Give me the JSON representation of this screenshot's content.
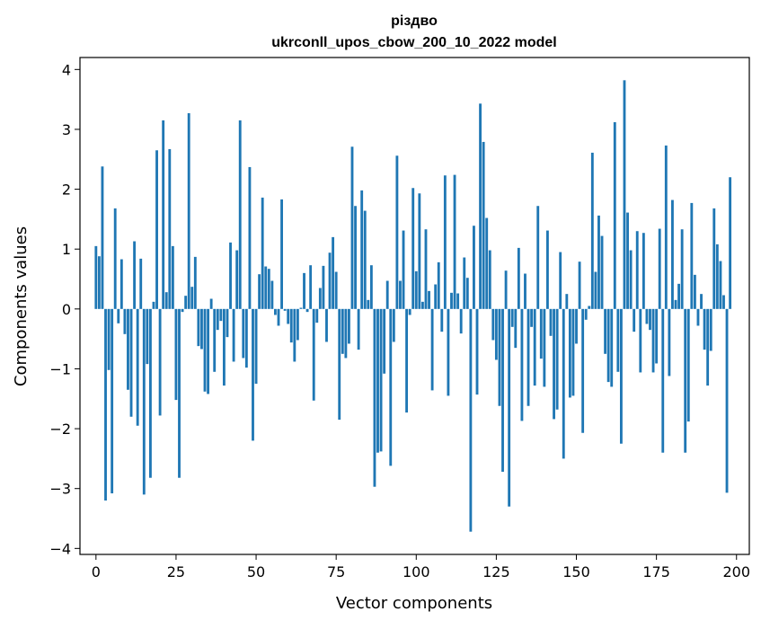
{
  "chart_data": {
    "type": "bar",
    "title": "різдво",
    "subtitle": "ukrconll_upos_cbow_200_10_2022 model",
    "xlabel": "Vector components",
    "ylabel": "Components values",
    "xlim": [
      -5,
      204
    ],
    "ylim": [
      -4.1,
      4.2
    ],
    "xticks": [
      0,
      25,
      50,
      75,
      100,
      125,
      150,
      175,
      200
    ],
    "yticks": [
      -4,
      -3,
      -2,
      -1,
      0,
      1,
      2,
      3,
      4
    ],
    "xtick_labels": [
      "0",
      "25",
      "50",
      "75",
      "100",
      "125",
      "150",
      "175",
      "200"
    ],
    "ytick_labels": [
      "−4",
      "−3",
      "−2",
      "−1",
      "0",
      "1",
      "2",
      "3",
      "4"
    ],
    "bar_color": "#1f77b4",
    "grid": false,
    "legend": "none",
    "values": [
      1.05,
      0.88,
      2.38,
      -3.2,
      -1.02,
      -3.08,
      1.68,
      -0.24,
      0.83,
      -0.42,
      -1.35,
      -1.8,
      1.13,
      -1.95,
      0.84,
      -3.1,
      -0.92,
      -2.82,
      0.12,
      2.65,
      -1.78,
      3.15,
      0.28,
      2.67,
      1.05,
      -1.52,
      -2.82,
      -0.05,
      0.22,
      3.27,
      0.37,
      0.87,
      -0.62,
      -0.67,
      -1.38,
      -1.42,
      0.17,
      -1.05,
      -0.35,
      -0.2,
      -1.28,
      -0.47,
      1.11,
      -0.88,
      0.98,
      3.15,
      -0.82,
      -0.98,
      2.37,
      -2.2,
      -1.25,
      0.58,
      1.86,
      0.71,
      0.67,
      0.47,
      -0.1,
      -0.28,
      1.83,
      -0.03,
      -0.25,
      -0.56,
      -0.88,
      -0.52,
      0.02,
      0.6,
      -0.05,
      0.73,
      -1.53,
      -0.23,
      0.35,
      0.72,
      -0.55,
      0.94,
      1.2,
      0.62,
      -1.85,
      -0.75,
      -0.82,
      -0.58,
      2.71,
      1.72,
      -0.68,
      1.98,
      1.64,
      0.15,
      0.73,
      -2.97,
      -2.4,
      -2.38,
      -1.08,
      0.47,
      -2.62,
      -0.55,
      2.56,
      0.47,
      1.31,
      -1.73,
      -0.1,
      2.02,
      0.63,
      1.93,
      0.12,
      1.33,
      0.3,
      -1.36,
      0.41,
      0.78,
      -0.38,
      2.23,
      -1.45,
      0.27,
      2.24,
      0.26,
      -0.41,
      0.86,
      0.52,
      -3.72,
      1.39,
      -1.43,
      3.43,
      2.79,
      1.52,
      0.98,
      -0.52,
      -0.85,
      -1.62,
      -2.72,
      0.64,
      -3.3,
      -0.3,
      -0.65,
      1.02,
      -1.87,
      0.59,
      -1.62,
      -0.3,
      -1.28,
      1.72,
      -0.83,
      -1.3,
      1.31,
      -0.45,
      -1.84,
      -1.68,
      0.95,
      -2.5,
      0.25,
      -1.48,
      -1.45,
      -0.58,
      0.79,
      -2.07,
      -0.18,
      0.05,
      2.61,
      0.62,
      1.56,
      1.22,
      -0.75,
      -1.22,
      -1.3,
      3.12,
      -1.05,
      -2.25,
      3.82,
      1.61,
      0.98,
      -0.38,
      1.3,
      -1.06,
      1.27,
      -0.25,
      -0.35,
      -1.06,
      -0.91,
      1.34,
      -2.4,
      2.73,
      -1.12,
      1.82,
      0.15,
      0.42,
      1.33,
      -2.4,
      -1.88,
      1.77,
      0.57,
      -0.28,
      0.25,
      -0.68,
      -1.28,
      -0.7,
      1.68,
      1.08,
      0.8,
      0.23,
      -3.07,
      2.2
    ]
  }
}
